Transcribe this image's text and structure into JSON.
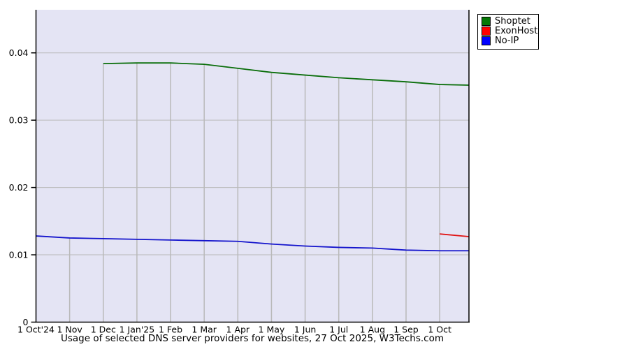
{
  "chart_data": {
    "type": "line",
    "title": "Usage of selected DNS server providers for websites, 27 Oct 2025, W3Techs.com",
    "xlabel": "",
    "ylabel": "",
    "x_unit": "months since 1 Oct 2024 (12.87 = 27 Oct 2025)",
    "xlim": [
      0,
      12.87
    ],
    "ylim": [
      0,
      0.0464
    ],
    "grid": "horizontal gridlines at each 0.01; vertical drop lines from x-ticks up to top-most series",
    "legend_position": "top-right outside plot",
    "colors": {
      "plot_bg": "#e4e4f4",
      "grid": "#b9b9b9",
      "axis": "#000000",
      "text": "#000000"
    },
    "y_ticks": [
      {
        "value": 0,
        "label": "0"
      },
      {
        "value": 0.01,
        "label": "0.01"
      },
      {
        "value": 0.02,
        "label": "0.02"
      },
      {
        "value": 0.03,
        "label": "0.03"
      },
      {
        "value": 0.04,
        "label": "0.04"
      }
    ],
    "x_ticks": [
      {
        "month": 0,
        "label": "1 Oct'24"
      },
      {
        "month": 1,
        "label": "1 Nov"
      },
      {
        "month": 2,
        "label": "1 Dec"
      },
      {
        "month": 3,
        "label": "1 Jan'25"
      },
      {
        "month": 4,
        "label": "1 Feb"
      },
      {
        "month": 5,
        "label": "1 Mar"
      },
      {
        "month": 6,
        "label": "1 Apr"
      },
      {
        "month": 7,
        "label": "1 May"
      },
      {
        "month": 8,
        "label": "1 Jun"
      },
      {
        "month": 9,
        "label": "1 Jul"
      },
      {
        "month": 10,
        "label": "1 Aug"
      },
      {
        "month": 11,
        "label": "1 Sep"
      },
      {
        "month": 12,
        "label": "1 Oct"
      }
    ],
    "series": [
      {
        "name": "Shoptet",
        "line_color": "#0a6e0a",
        "legend_color": "#067806",
        "points": [
          [
            2,
            0.0384
          ],
          [
            3,
            0.0385
          ],
          [
            4,
            0.0385
          ],
          [
            5,
            0.0383
          ],
          [
            6,
            0.0377
          ],
          [
            7,
            0.0371
          ],
          [
            8,
            0.0367
          ],
          [
            9,
            0.0363
          ],
          [
            10,
            0.036
          ],
          [
            11,
            0.0357
          ],
          [
            12,
            0.0353
          ],
          [
            12.87,
            0.0352
          ]
        ]
      },
      {
        "name": "ExonHost",
        "line_color": "#e01414",
        "legend_color": "#ff0000",
        "points": [
          [
            12,
            0.0131
          ],
          [
            12.87,
            0.0127
          ]
        ]
      },
      {
        "name": "No-IP",
        "line_color": "#1414cc",
        "legend_color": "#0000ff",
        "points": [
          [
            0,
            0.0128
          ],
          [
            1,
            0.0125
          ],
          [
            2,
            0.0124
          ],
          [
            3,
            0.0123
          ],
          [
            4,
            0.0122
          ],
          [
            5,
            0.0121
          ],
          [
            6,
            0.012
          ],
          [
            7,
            0.0116
          ],
          [
            8,
            0.0113
          ],
          [
            9,
            0.0111
          ],
          [
            10,
            0.011
          ],
          [
            11,
            0.0107
          ],
          [
            12,
            0.0106
          ],
          [
            12.87,
            0.0106
          ]
        ]
      }
    ]
  }
}
